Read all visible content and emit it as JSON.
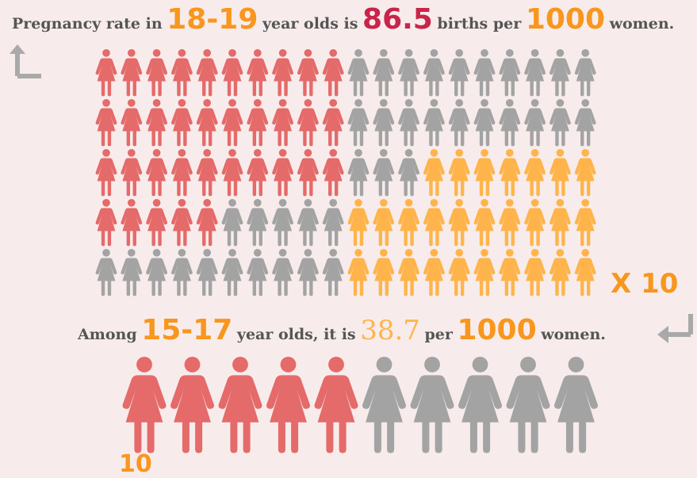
{
  "line1": {
    "prefix": "Pregnancy rate in",
    "age": "18-19",
    "mid": "year olds is",
    "rate": "86.5",
    "mid2": "births per",
    "per": "1000",
    "suffix": "women."
  },
  "line2": {
    "prefix": "Among",
    "age": "15-17",
    "mid": "year olds, it is",
    "rate": "38.7",
    "mid2": "per",
    "per": "1000",
    "suffix": "women."
  },
  "multiplier": "X 10",
  "partial_text": "10",
  "colors": {
    "red": "#e56a6a",
    "gray": "#a3a3a3",
    "orange": "#ffb44b",
    "accent_orange": "#f8961e",
    "crimson": "#c9244a",
    "text": "#555555",
    "arrow": "#a9a9a9"
  },
  "grid_rows": [
    {
      "red": 10,
      "gray": 10,
      "orange": 0
    },
    {
      "red": 10,
      "gray": 10,
      "orange": 0
    },
    {
      "red": 10,
      "gray": 3,
      "orange": 7
    },
    {
      "red": 5,
      "gray": 5,
      "orange": 10
    },
    {
      "red": 0,
      "gray": 10,
      "orange": 10
    }
  ],
  "bottom_row": {
    "red": 5,
    "gray": 5
  }
}
